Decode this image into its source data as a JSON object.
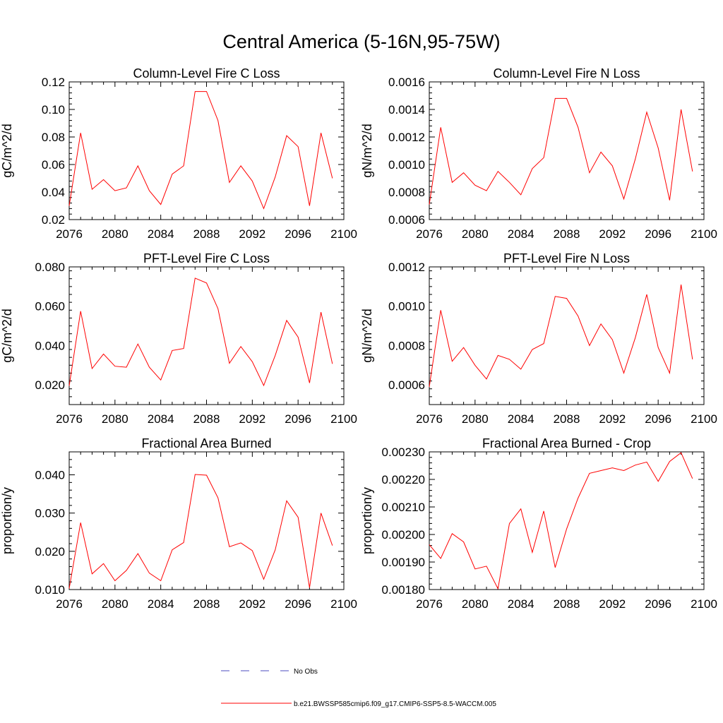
{
  "figure": {
    "title": "Central America (5-16N,95-75W)"
  },
  "legend": {
    "entries": [
      {
        "label": "No Obs",
        "color": "#4b4bbf",
        "style": "dashed"
      },
      {
        "label": "b.e21.BWSSP585cmip6.f09_g17.CMIP6-SSP5-8.5-WACCM.005",
        "color": "#ff0000",
        "style": "solid"
      }
    ]
  },
  "chart_data": [
    {
      "type": "line",
      "title": "Column-Level Fire C Loss",
      "ylabel": "gC/m^2/d",
      "xlabel": "",
      "xlim": [
        2076,
        2100
      ],
      "ylim": [
        0.02,
        0.12
      ],
      "xticks": [
        "2076",
        "2080",
        "2084",
        "2088",
        "2092",
        "2096",
        "2100"
      ],
      "yticks": [
        "0.02",
        "0.04",
        "0.06",
        "0.08",
        "0.10",
        "0.12"
      ],
      "x": [
        2076,
        2077,
        2078,
        2079,
        2080,
        2081,
        2082,
        2083,
        2084,
        2085,
        2086,
        2087,
        2088,
        2089,
        2090,
        2091,
        2092,
        2093,
        2094,
        2095,
        2096,
        2097,
        2098,
        2099
      ],
      "series": [
        {
          "name": "b.e21.BWSSP585cmip6.f09_g17.CMIP6-SSP5-8.5-WACCM.005",
          "color": "#ff0000",
          "values": [
            0.03,
            0.083,
            0.042,
            0.049,
            0.041,
            0.043,
            0.059,
            0.041,
            0.031,
            0.053,
            0.059,
            0.113,
            0.113,
            0.092,
            0.047,
            0.059,
            0.048,
            0.028,
            0.051,
            0.081,
            0.073,
            0.03,
            0.083,
            0.05
          ]
        }
      ]
    },
    {
      "type": "line",
      "title": "Column-Level Fire N Loss",
      "ylabel": "gN/m^2/d",
      "xlabel": "",
      "xlim": [
        2076,
        2100
      ],
      "ylim": [
        0.0006,
        0.0016
      ],
      "xticks": [
        "2076",
        "2080",
        "2084",
        "2088",
        "2092",
        "2096",
        "2100"
      ],
      "yticks": [
        "0.0006",
        "0.0008",
        "0.0010",
        "0.0012",
        "0.0014",
        "0.0016"
      ],
      "x": [
        2076,
        2077,
        2078,
        2079,
        2080,
        2081,
        2082,
        2083,
        2084,
        2085,
        2086,
        2087,
        2088,
        2089,
        2090,
        2091,
        2092,
        2093,
        2094,
        2095,
        2096,
        2097,
        2098,
        2099
      ],
      "series": [
        {
          "name": "b.e21.BWSSP585cmip6.f09_g17.CMIP6-SSP5-8.5-WACCM.005",
          "color": "#ff0000",
          "values": [
            0.00071,
            0.00127,
            0.00087,
            0.00094,
            0.00085,
            0.00081,
            0.00095,
            0.00087,
            0.00078,
            0.00097,
            0.00105,
            0.00148,
            0.00148,
            0.00127,
            0.00094,
            0.00109,
            0.00099,
            0.00075,
            0.00104,
            0.00138,
            0.00112,
            0.00074,
            0.0014,
            0.00095
          ]
        }
      ]
    },
    {
      "type": "line",
      "title": "PFT-Level Fire C Loss",
      "ylabel": "gC/m^2/d",
      "xlabel": "",
      "xlim": [
        2076,
        2100
      ],
      "ylim": [
        0.01,
        0.08
      ],
      "xticks": [
        "2076",
        "2080",
        "2084",
        "2088",
        "2092",
        "2096",
        "2100"
      ],
      "yticks": [
        "0.020",
        "0.040",
        "0.060",
        "0.080"
      ],
      "x": [
        2076,
        2077,
        2078,
        2079,
        2080,
        2081,
        2082,
        2083,
        2084,
        2085,
        2086,
        2087,
        2088,
        2089,
        2090,
        2091,
        2092,
        2093,
        2094,
        2095,
        2096,
        2097,
        2098,
        2099
      ],
      "series": [
        {
          "name": "b.e21.BWSSP585cmip6.f09_g17.CMIP6-SSP5-8.5-WACCM.005",
          "color": "#ff0000",
          "values": [
            0.0195,
            0.0575,
            0.0283,
            0.0357,
            0.0295,
            0.029,
            0.0408,
            0.029,
            0.0225,
            0.0375,
            0.0385,
            0.0743,
            0.0718,
            0.0588,
            0.031,
            0.0395,
            0.0318,
            0.0197,
            0.035,
            0.0528,
            0.0443,
            0.021,
            0.057,
            0.0307
          ]
        }
      ]
    },
    {
      "type": "line",
      "title": "PFT-Level Fire N Loss",
      "ylabel": "gN/m^2/d",
      "xlabel": "",
      "xlim": [
        2076,
        2100
      ],
      "ylim": [
        0.0005,
        0.0012
      ],
      "xticks": [
        "2076",
        "2080",
        "2084",
        "2088",
        "2092",
        "2096",
        "2100"
      ],
      "yticks": [
        "0.0006",
        "0.0008",
        "0.0010",
        "0.0012"
      ],
      "x": [
        2076,
        2077,
        2078,
        2079,
        2080,
        2081,
        2082,
        2083,
        2084,
        2085,
        2086,
        2087,
        2088,
        2089,
        2090,
        2091,
        2092,
        2093,
        2094,
        2095,
        2096,
        2097,
        2098,
        2099
      ],
      "series": [
        {
          "name": "b.e21.BWSSP585cmip6.f09_g17.CMIP6-SSP5-8.5-WACCM.005",
          "color": "#ff0000",
          "values": [
            0.00059,
            0.00098,
            0.00072,
            0.00079,
            0.0007,
            0.00063,
            0.00075,
            0.00073,
            0.00068,
            0.00078,
            0.00081,
            0.00105,
            0.00104,
            0.00095,
            0.0008,
            0.00091,
            0.00083,
            0.00066,
            0.00084,
            0.00106,
            0.00079,
            0.00066,
            0.00111,
            0.00073
          ]
        }
      ]
    },
    {
      "type": "line",
      "title": "Fractional Area Burned",
      "ylabel": "proportion/y",
      "xlabel": "",
      "xlim": [
        2076,
        2100
      ],
      "ylim": [
        0.01,
        0.046
      ],
      "xticks": [
        "2076",
        "2080",
        "2084",
        "2088",
        "2092",
        "2096",
        "2100"
      ],
      "yticks": [
        "0.010",
        "0.020",
        "0.030",
        "0.040"
      ],
      "x": [
        2076,
        2077,
        2078,
        2079,
        2080,
        2081,
        2082,
        2083,
        2084,
        2085,
        2086,
        2087,
        2088,
        2089,
        2090,
        2091,
        2092,
        2093,
        2094,
        2095,
        2096,
        2097,
        2098,
        2099
      ],
      "series": [
        {
          "name": "b.e21.BWSSP585cmip6.f09_g17.CMIP6-SSP5-8.5-WACCM.005",
          "color": "#ff0000",
          "values": [
            0.0103,
            0.0275,
            0.0141,
            0.0168,
            0.0123,
            0.015,
            0.0194,
            0.0143,
            0.0123,
            0.0204,
            0.0223,
            0.0401,
            0.0399,
            0.034,
            0.0212,
            0.0222,
            0.0202,
            0.0127,
            0.0204,
            0.0332,
            0.0289,
            0.0105,
            0.03,
            0.0215
          ]
        }
      ]
    },
    {
      "type": "line",
      "title": "Fractional Area Burned - Crop",
      "ylabel": "proportion/y",
      "xlabel": "",
      "xlim": [
        2076,
        2100
      ],
      "ylim": [
        0.0018,
        0.0023
      ],
      "xticks": [
        "2076",
        "2080",
        "2084",
        "2088",
        "2092",
        "2096",
        "2100"
      ],
      "yticks": [
        "0.00180",
        "0.00190",
        "0.00200",
        "0.00210",
        "0.00220",
        "0.00230"
      ],
      "x": [
        2076,
        2077,
        2078,
        2079,
        2080,
        2081,
        2082,
        2083,
        2084,
        2085,
        2086,
        2087,
        2088,
        2089,
        2090,
        2091,
        2092,
        2093,
        2094,
        2095,
        2096,
        2097,
        2098,
        2099
      ],
      "series": [
        {
          "name": "b.e21.BWSSP585cmip6.f09_g17.CMIP6-SSP5-8.5-WACCM.005",
          "color": "#ff0000",
          "values": [
            0.001963,
            0.001913,
            0.002003,
            0.001973,
            0.001875,
            0.001885,
            0.001803,
            0.00204,
            0.002093,
            0.001935,
            0.002085,
            0.00188,
            0.00202,
            0.002132,
            0.002222,
            0.002232,
            0.002242,
            0.002232,
            0.002252,
            0.002263,
            0.002193,
            0.002265,
            0.002297,
            0.002203
          ]
        }
      ]
    }
  ]
}
